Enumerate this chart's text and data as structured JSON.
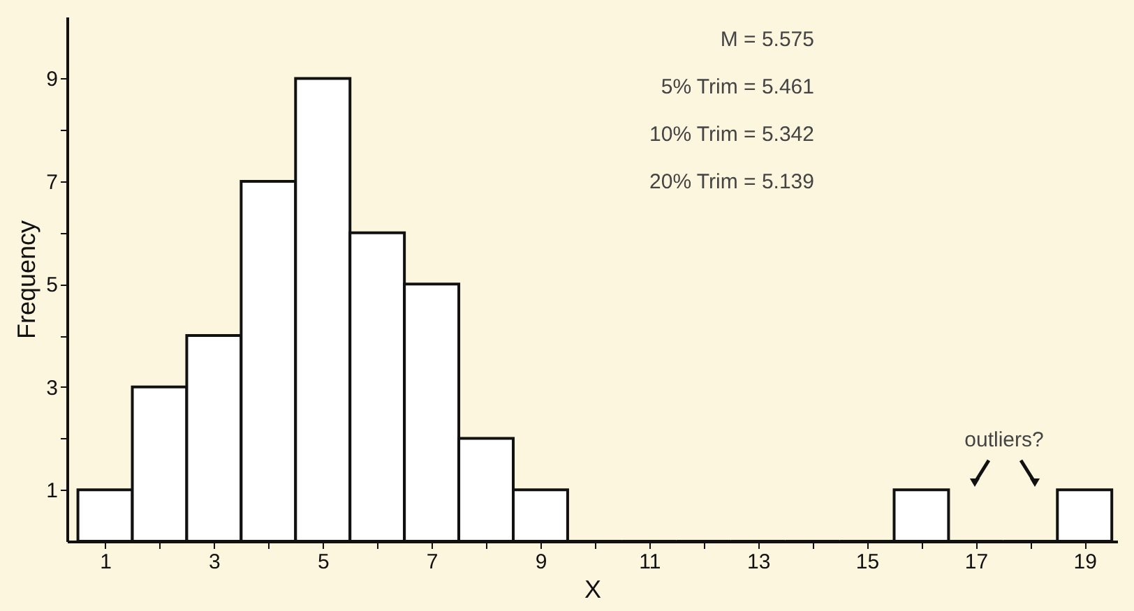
{
  "chart_data": {
    "type": "histogram",
    "bins": [
      0.5,
      1.5,
      2.5,
      3.5,
      4.5,
      5.5,
      6.5,
      7.5,
      8.5,
      9.5,
      10.5,
      11.5,
      12.5,
      13.5,
      14.5,
      15.5,
      16.5,
      17.5,
      18.5,
      19.5
    ],
    "values": [
      1,
      3,
      4,
      7,
      9,
      6,
      5,
      2,
      1,
      0,
      0,
      0,
      0,
      0,
      0,
      1,
      0,
      0,
      1
    ],
    "color": "#ffffff",
    "xlabel": "X",
    "ylabel": "Frequency",
    "xlim": [
      0.3,
      19.6
    ],
    "ylim": [
      0,
      10.2
    ],
    "xticks": [
      1,
      {
        "value": 2,
        "label": null
      },
      3,
      {
        "value": 4,
        "label": null
      },
      5,
      {
        "value": 6,
        "label": null
      },
      7,
      {
        "value": 8,
        "label": null
      },
      9,
      {
        "value": 10,
        "label": null
      },
      11,
      {
        "value": 12,
        "label": null
      },
      13,
      {
        "value": 14,
        "label": null
      },
      15,
      {
        "value": 16,
        "label": null
      },
      17,
      {
        "value": 18,
        "label": null
      },
      19
    ],
    "yticks": [
      1,
      {
        "value": 2,
        "label": null
      },
      3,
      {
        "value": 4,
        "label": null
      },
      5,
      {
        "value": 6,
        "label": null
      },
      7,
      {
        "value": 8,
        "label": null
      },
      9
    ],
    "grid": false,
    "annotations": [
      "M  =  5.575",
      "5% Trim  =  5.461",
      "10% Trim  =  5.342",
      "20% Trim  =  5.139",
      "outliers?"
    ]
  }
}
